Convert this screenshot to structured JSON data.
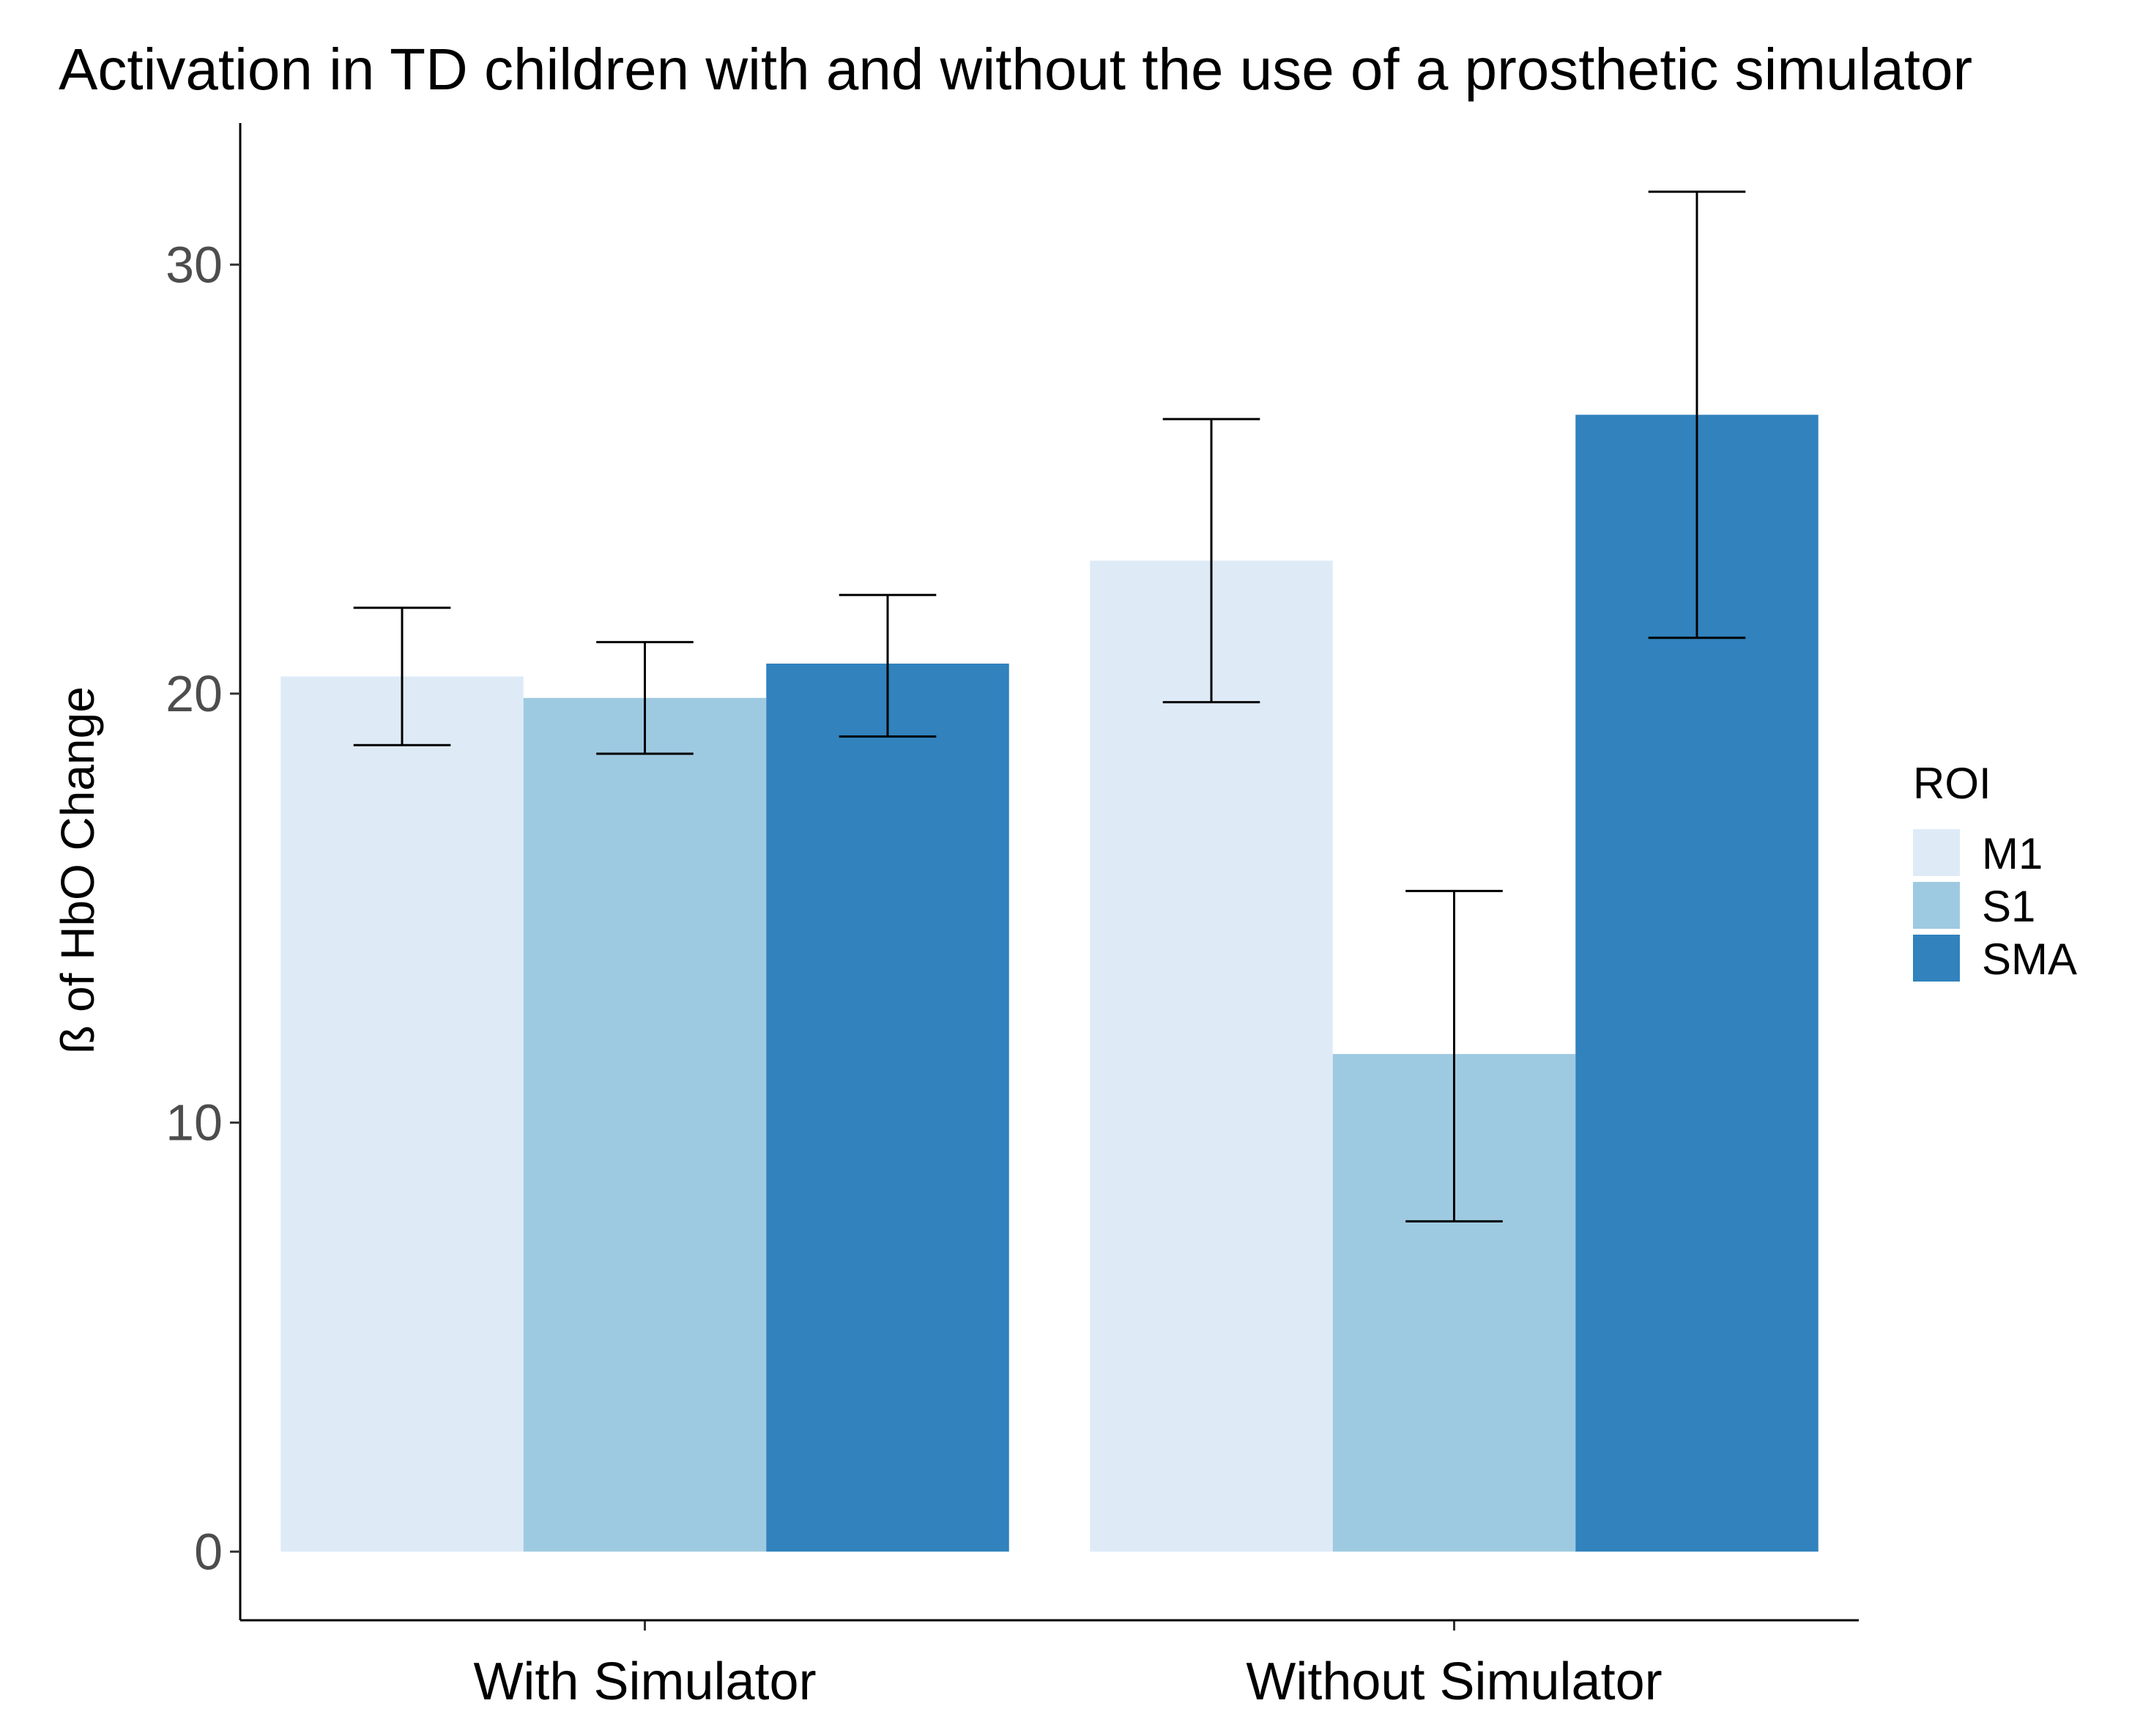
{
  "chart_data": {
    "type": "bar",
    "title": "Activation in TD children with and without the use of a prosthetic simulator",
    "xlabel": "",
    "ylabel": "ß of HbO Change",
    "categories": [
      "With Simulator",
      "Without Simulator"
    ],
    "series": [
      {
        "name": "M1",
        "color": "#DEEBF7",
        "values": [
          20.4,
          23.1
        ],
        "error_low": [
          18.8,
          19.8
        ],
        "error_high": [
          22.0,
          26.4
        ]
      },
      {
        "name": "S1",
        "color": "#9ECAE1",
        "values": [
          19.9,
          11.6
        ],
        "error_low": [
          18.6,
          7.7
        ],
        "error_high": [
          21.2,
          15.4
        ]
      },
      {
        "name": "SMA",
        "color": "#3182BD",
        "values": [
          20.7,
          26.5
        ],
        "error_low": [
          19.0,
          21.3
        ],
        "error_high": [
          22.3,
          31.7
        ]
      }
    ],
    "ylim": [
      -1.6,
      33.3
    ],
    "yticks": [
      0,
      10,
      20,
      30
    ],
    "grid": false,
    "legend": {
      "title": "ROI",
      "position": "right"
    }
  }
}
